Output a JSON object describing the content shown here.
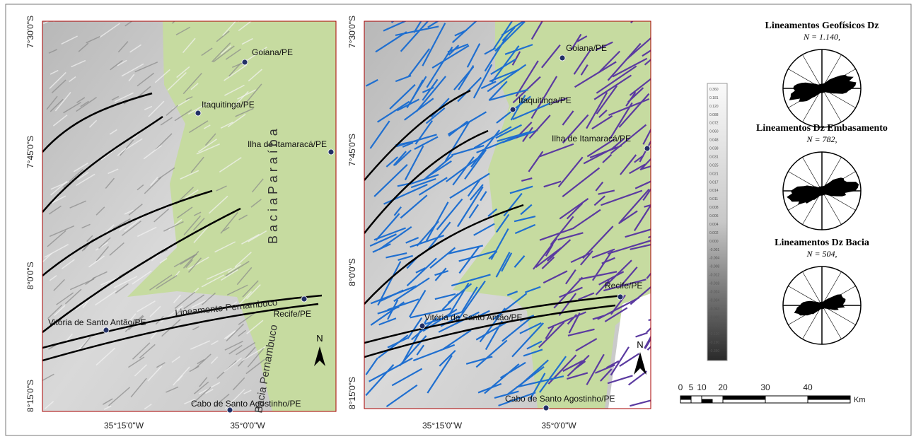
{
  "left_map": {
    "y_labels": [
      "7°30'0\"S",
      "7°45'0\"S",
      "8°0'0\"S",
      "8°15'0\"S"
    ],
    "x_labels": [
      "35°15'0\"W",
      "35°0'0\"W"
    ],
    "places": [
      "Goiana/PE",
      "Itaquitinga/PE",
      "Ilha de Itamaracá/PE",
      "Recife/PE",
      "Vitória de Santo Antão/PE",
      "Cabo de Santo Agostinho/PE"
    ],
    "annotations": {
      "bacia_paraiba": "B a c i a   P a r a í b a",
      "lineamento": "Lineamento Pernambuco",
      "bacia_pernambuco": "Bacia Pernambuco",
      "north": "N"
    }
  },
  "right_map": {
    "y_labels": [
      "7°30'0\"S",
      "7°45'0\"S",
      "8°0'0\"S",
      "8°15'0\"S"
    ],
    "x_labels": [
      "35°15'0\"W",
      "35°0'0\"W"
    ],
    "places": [
      "Goiana/PE",
      "Itaquitinga/PE",
      "Ilha de Itamaracá/PE",
      "Recife/PE",
      "Vitória de Santo Antão/PE",
      "Cabo de Santo Agostinho/PE"
    ],
    "north": "N"
  },
  "colorbar": {
    "labels": [
      "0.360",
      "0.181",
      "0.120",
      "0.088",
      "0.072",
      "0.060",
      "0.048",
      "0.038",
      "0.031",
      "0.025",
      "0.021",
      "0.017",
      "0.014",
      "0.011",
      "0.008",
      "0.006",
      "0.004",
      "0.002",
      "0.000",
      "-0.001",
      "-0.004",
      "-0.008",
      "-0.012",
      "-0.018",
      "-0.024",
      "-0.034",
      "-0.043",
      "-0.060",
      "-0.083",
      "-0.120",
      "-0.190",
      "-0.360"
    ]
  },
  "scale_bar": {
    "ticks": [
      "0",
      "5",
      "10",
      "20",
      "30",
      "40"
    ],
    "unit": "Km"
  },
  "rose_diagrams": [
    {
      "title": "Lineamentos Geofísicos Dz",
      "n": "N = 1.140,"
    },
    {
      "title": "Lineamentos Dz Embasamento",
      "n": "N = 782,"
    },
    {
      "title": "Lineamentos Dz Bacia",
      "n": "N = 504,"
    }
  ]
}
